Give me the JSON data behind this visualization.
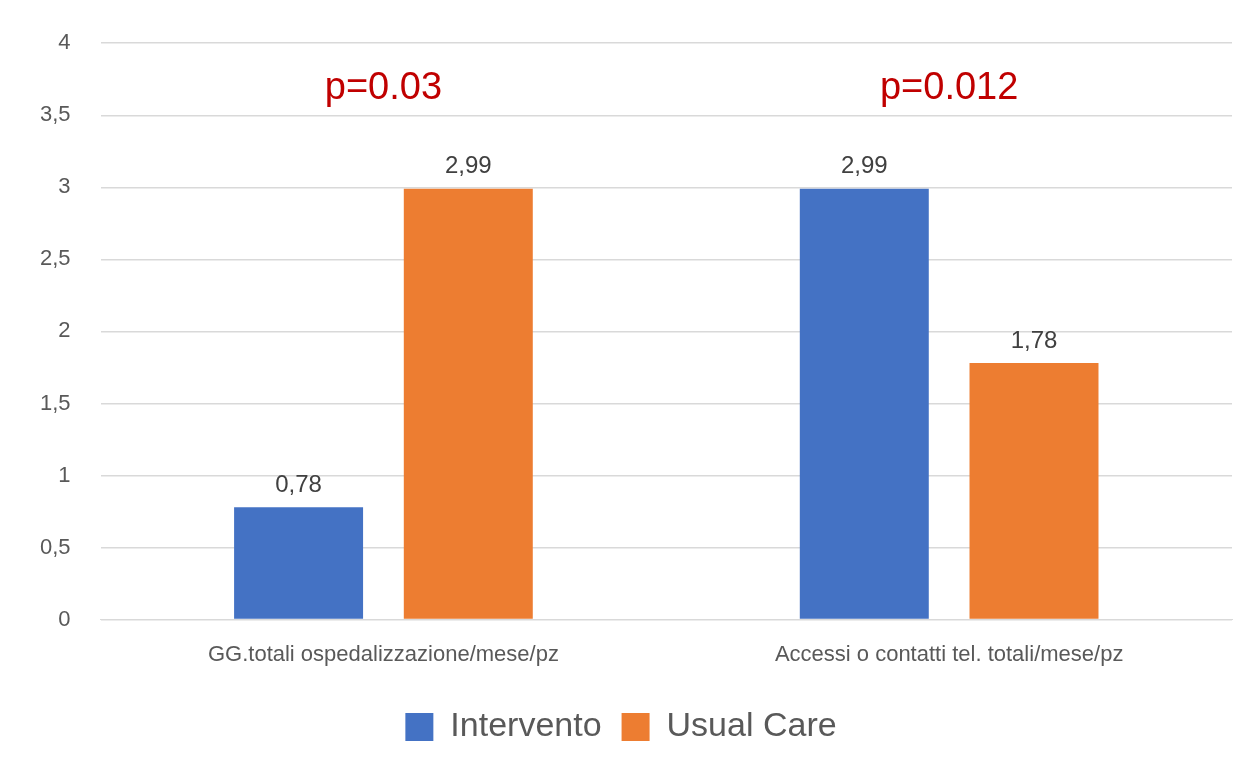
{
  "chart_data": {
    "type": "bar",
    "categories": [
      "GG.totali ospedalizzazione/mese/pz",
      "Accessi o contatti tel. totali/mese/pz"
    ],
    "series": [
      {
        "name": "Intervento",
        "color": "#4472c4",
        "values": [
          0.78,
          2.99
        ],
        "value_labels": [
          "0,78",
          "2,99"
        ]
      },
      {
        "name": "Usual Care",
        "color": "#ed7d31",
        "values": [
          2.99,
          1.78
        ],
        "value_labels": [
          "2,99",
          "1,78"
        ]
      }
    ],
    "ylim": [
      0,
      4
    ],
    "yticks": [
      0,
      {
        "value": 0.5,
        "label": "0,5"
      },
      1,
      {
        "value": 1.5,
        "label": "1,5"
      },
      2,
      {
        "value": 2.5,
        "label": "2,5"
      },
      3,
      {
        "value": 3.5,
        "label": "3,5"
      },
      4
    ],
    "grid": "y",
    "legend": "bottom",
    "annotations": [
      "p=0.03",
      "p=0.012"
    ]
  }
}
